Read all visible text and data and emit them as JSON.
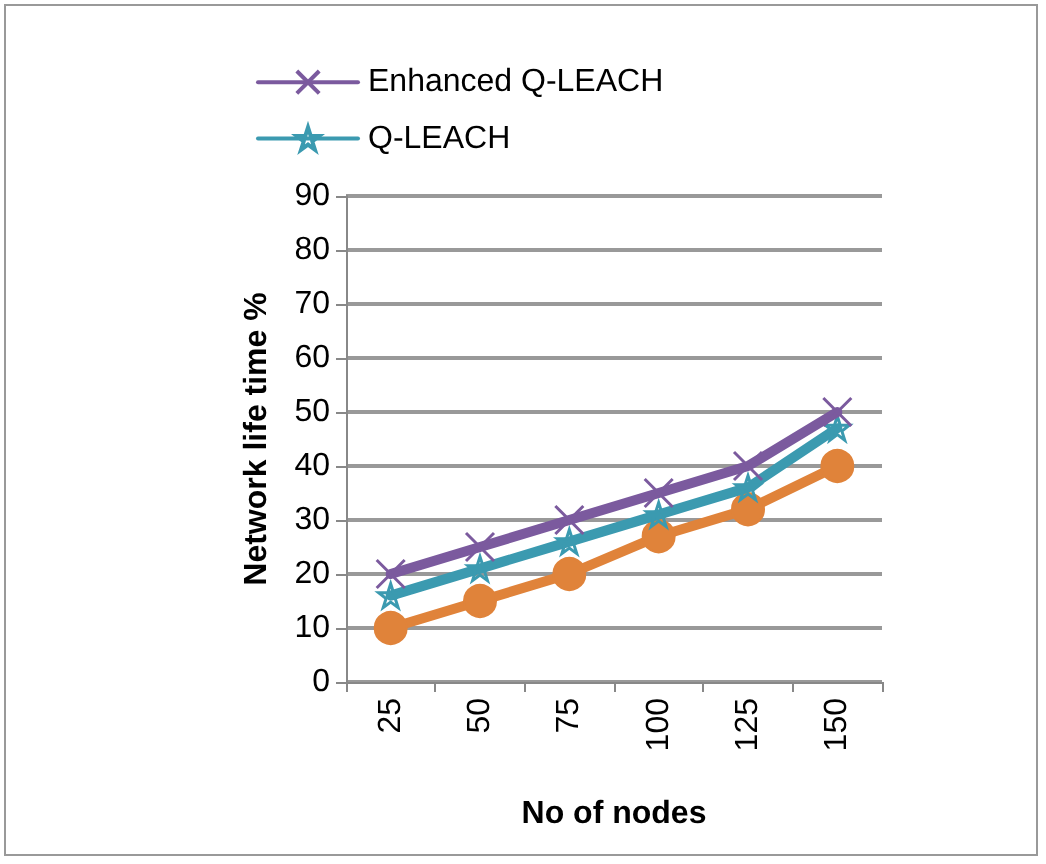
{
  "chart_data": {
    "type": "line",
    "xlabel": "No of nodes",
    "ylabel": "Network life time %",
    "categories": [
      "25",
      "50",
      "75",
      "100",
      "125",
      "150"
    ],
    "series": [
      {
        "name": "Enhanced Q-LEACH",
        "color": "#7b5a9e",
        "marker": "cross",
        "values": [
          20,
          25,
          30,
          35,
          40,
          50
        ]
      },
      {
        "name": "Q-LEACH",
        "color": "#3b9ab0",
        "marker": "star",
        "values": [
          16,
          21,
          26,
          31,
          36,
          47
        ]
      },
      {
        "color": "#e0833a",
        "marker": "circle",
        "values": [
          10,
          15,
          20,
          27,
          32,
          40
        ]
      }
    ],
    "ylim": [
      0,
      90
    ],
    "yticks": [
      0,
      10,
      20,
      30,
      40,
      50,
      60,
      70,
      80,
      90
    ],
    "grid": "y",
    "legend": "top left"
  }
}
